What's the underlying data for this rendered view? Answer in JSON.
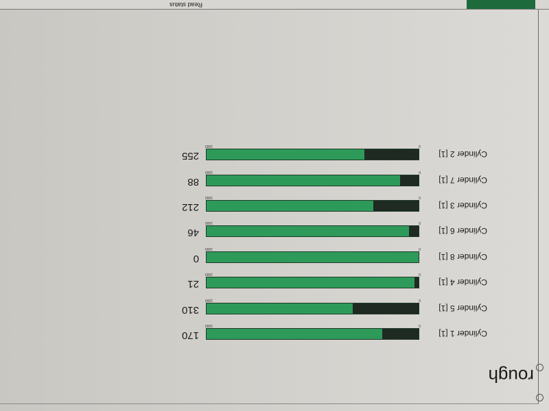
{
  "page": {
    "title": "rough"
  },
  "scale": {
    "min_label": "0",
    "max_label": "1000",
    "min": 0,
    "max": 1000
  },
  "colors": {
    "bar": "#2e9a5a",
    "fill": "#1f2a22"
  },
  "cylinders": [
    {
      "label": "Cylinder 1 [1]",
      "value": 170,
      "value_text": "170"
    },
    {
      "label": "Cylinder 5 [1]",
      "value": 310,
      "value_text": "310"
    },
    {
      "label": "Cylinder 4 [1]",
      "value": 21,
      "value_text": "21"
    },
    {
      "label": "Cylinder 8 [1]",
      "value": 0,
      "value_text": "0"
    },
    {
      "label": "Cylinder 6 [1]",
      "value": 46,
      "value_text": "46"
    },
    {
      "label": "Cylinder 3 [1]",
      "value": 212,
      "value_text": "212"
    },
    {
      "label": "Cylinder 7 [1]",
      "value": 88,
      "value_text": "88"
    },
    {
      "label": "Cylinder 2 [1]",
      "value": 255,
      "value_text": "255"
    }
  ],
  "status_bar": {
    "button_label": "Read status"
  }
}
